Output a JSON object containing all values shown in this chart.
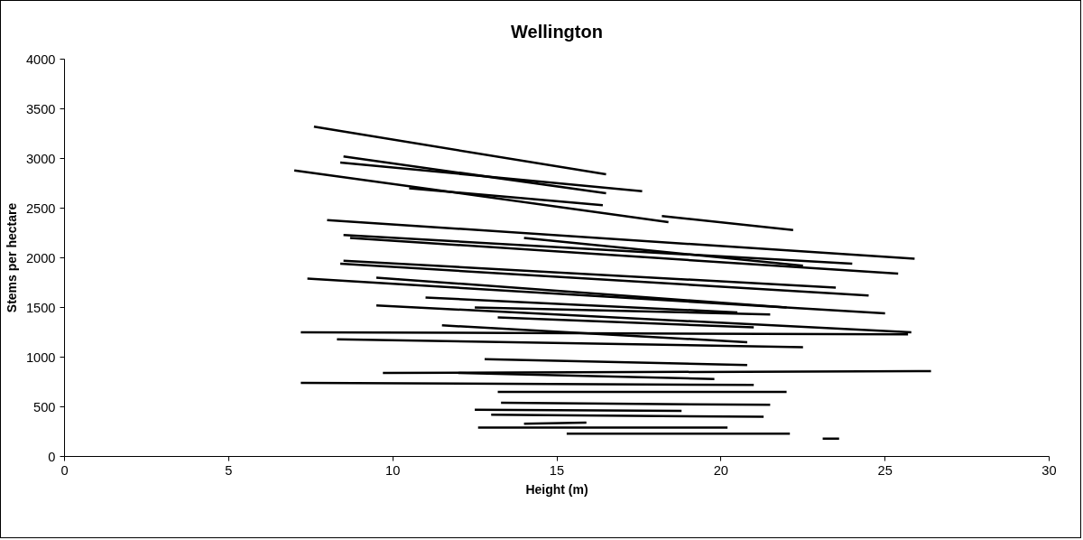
{
  "chart_data": {
    "type": "line",
    "title": "Wellington",
    "xlabel": "Height (m)",
    "ylabel": "Stems per hectare",
    "xlim": [
      0,
      30
    ],
    "xticks": [
      0,
      5,
      10,
      15,
      20,
      25,
      30
    ],
    "ylim": [
      0,
      4000
    ],
    "yticks": [
      0,
      500,
      1000,
      1500,
      2000,
      2500,
      3000,
      3500,
      4000
    ],
    "grid": false,
    "marker": "none",
    "line_style": "solid",
    "series": [
      {
        "color": "#000000",
        "x": [
          7.6,
          16.5
        ],
        "values": [
          3320,
          2840
        ]
      },
      {
        "color": "#000000",
        "x": [
          8.5,
          16.5
        ],
        "values": [
          3020,
          2650
        ]
      },
      {
        "color": "#000000",
        "x": [
          8.4,
          17.6
        ],
        "values": [
          2960,
          2670
        ]
      },
      {
        "color": "#000000",
        "x": [
          7.0,
          18.4
        ],
        "values": [
          2880,
          2360
        ]
      },
      {
        "color": "#000000",
        "x": [
          10.5,
          16.4
        ],
        "values": [
          2700,
          2530
        ]
      },
      {
        "color": "#000000",
        "x": [
          18.2,
          22.2
        ],
        "values": [
          2420,
          2280
        ]
      },
      {
        "color": "#000000",
        "x": [
          8.0,
          25.9
        ],
        "values": [
          2380,
          1990
        ]
      },
      {
        "color": "#000000",
        "x": [
          8.5,
          24.0
        ],
        "values": [
          2230,
          1940
        ]
      },
      {
        "color": "#000000",
        "x": [
          8.7,
          25.4
        ],
        "values": [
          2200,
          1840
        ]
      },
      {
        "color": "#000000",
        "x": [
          14.0,
          22.5
        ],
        "values": [
          2200,
          1920
        ]
      },
      {
        "color": "#000000",
        "x": [
          8.5,
          23.5
        ],
        "values": [
          1970,
          1700
        ]
      },
      {
        "color": "#000000",
        "x": [
          8.4,
          24.5
        ],
        "values": [
          1940,
          1620
        ]
      },
      {
        "color": "#000000",
        "x": [
          9.5,
          22.0
        ],
        "values": [
          1800,
          1500
        ]
      },
      {
        "color": "#000000",
        "x": [
          7.4,
          25.0
        ],
        "values": [
          1790,
          1440
        ]
      },
      {
        "color": "#000000",
        "x": [
          11.0,
          20.5
        ],
        "values": [
          1600,
          1450
        ]
      },
      {
        "color": "#000000",
        "x": [
          9.5,
          25.8
        ],
        "values": [
          1520,
          1250
        ]
      },
      {
        "color": "#000000",
        "x": [
          12.5,
          21.5
        ],
        "values": [
          1500,
          1430
        ]
      },
      {
        "color": "#000000",
        "x": [
          13.2,
          21.0
        ],
        "values": [
          1400,
          1300
        ]
      },
      {
        "color": "#000000",
        "x": [
          11.5,
          20.8
        ],
        "values": [
          1320,
          1150
        ]
      },
      {
        "color": "#000000",
        "x": [
          7.2,
          25.7
        ],
        "values": [
          1250,
          1230
        ]
      },
      {
        "color": "#000000",
        "x": [
          8.3,
          22.5
        ],
        "values": [
          1180,
          1100
        ]
      },
      {
        "color": "#000000",
        "x": [
          12.8,
          20.8
        ],
        "values": [
          980,
          920
        ]
      },
      {
        "color": "#000000",
        "x": [
          9.7,
          26.4
        ],
        "values": [
          840,
          860
        ]
      },
      {
        "color": "#000000",
        "x": [
          12.0,
          19.8
        ],
        "values": [
          840,
          780
        ]
      },
      {
        "color": "#000000",
        "x": [
          7.2,
          21.0
        ],
        "values": [
          740,
          720
        ]
      },
      {
        "color": "#000000",
        "x": [
          13.2,
          22.0
        ],
        "values": [
          650,
          650
        ]
      },
      {
        "color": "#000000",
        "x": [
          13.3,
          21.5
        ],
        "values": [
          540,
          520
        ]
      },
      {
        "color": "#000000",
        "x": [
          12.5,
          18.8
        ],
        "values": [
          470,
          460
        ]
      },
      {
        "color": "#000000",
        "x": [
          13.0,
          21.3
        ],
        "values": [
          420,
          400
        ]
      },
      {
        "color": "#000000",
        "x": [
          14.0,
          15.9
        ],
        "values": [
          330,
          340
        ]
      },
      {
        "color": "#000000",
        "x": [
          12.6,
          20.2
        ],
        "values": [
          290,
          290
        ]
      },
      {
        "color": "#000000",
        "x": [
          15.3,
          22.1
        ],
        "values": [
          230,
          230
        ]
      },
      {
        "color": "#000000",
        "x": [
          23.1,
          23.6
        ],
        "values": [
          180,
          180
        ]
      }
    ]
  }
}
